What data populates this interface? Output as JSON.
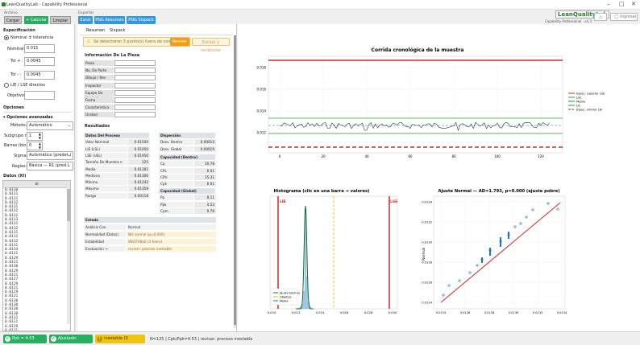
{
  "app": {
    "title": "LeanQualityLab - Capability Professional",
    "brand": "LeanQualityLab",
    "brand_sub": "Capability Professional · v4.3"
  },
  "toolbar": {
    "archivo_label": "Archivo",
    "cargar": "Cargar",
    "calcular": "+ Calcular",
    "limpiar": "Limpiar",
    "exportar_label": "Exportar",
    "excel": "Excel",
    "png_resumen": "PNG Resumen",
    "png_sixpack": "PNG Sixpack",
    "ingresar": "Ingresar"
  },
  "spec": {
    "section": "Especificación",
    "mode_nominal": "Nominal ± tolerancia",
    "nominal_label": "Nominal:",
    "nominal_value": "0.015",
    "tol_plus_label": "Tol + :",
    "tol_plus_value": "0.0045",
    "tol_minus_label": "Tol - :",
    "tol_minus_value": "0.0045",
    "mode_lie": "LIE / LSE directos",
    "objetivo_label": "Objetivo:",
    "objetivo_value": ""
  },
  "options": {
    "section": "Opciones",
    "advanced": "Opciones avanzadas",
    "metodo_label": "Método:",
    "metodo_value": "Automático",
    "subgrupo_label": "Subgrupo n:",
    "subgrupo_value": "1",
    "barras_label": "Barras (bins):",
    "barras_value": "0",
    "sigma_label": "Sigma:",
    "sigma_value": "Automático (predet.)",
    "reglas_label": "Reglas:",
    "reglas_value": "Básica — R1 (pred.)"
  },
  "data": {
    "section": "Datos (XI)",
    "column": "xi",
    "values": [
      "0.0130",
      "0.0131",
      "0.0131",
      "0.0132",
      "0.0131",
      "0.0132",
      "0.0131",
      "0.0133",
      "0.0131",
      "0.0132",
      "0.0131",
      "0.0131",
      "0.0132",
      "0.0131",
      "0.0134",
      "0.0131",
      "0.0129",
      "0.0131",
      "0.0130",
      "0.0129",
      "0.0131",
      "0.0127",
      "0.0129",
      "0.0131",
      "0.0129",
      "0.0131",
      "0.0130",
      "0.0130",
      "0.0130",
      "0.0130",
      "0.0131",
      "0.0131",
      "0.0129",
      "0.0131",
      "0.0130",
      "0.0131"
    ]
  },
  "middle": {
    "tab_resumen": "Resumen",
    "tab_sixpack": "Sixpack",
    "warning": "Se detectaron 3 punto(s) fuera de control.",
    "revisar": "Revisar",
    "excluir": "Excluir y recalcular",
    "info_title": "Información De La Pieza",
    "info_fields": [
      "Pieza",
      "No. De Parte",
      "Dibujo / Rev",
      "Inspector",
      "Equipo De Medición",
      "Fecha",
      "Característica",
      "Unidad"
    ],
    "results_title": "Resultados",
    "proc_title": "Datos Del Proceso",
    "proc_rows": [
      {
        "k": "Valor Nominal",
        "v": "0.01500"
      },
      {
        "k": "LIE (LSL)",
        "v": "0.01050"
      },
      {
        "k": "LSE (USL)",
        "v": "0.01950"
      },
      {
        "k": "Tamaño De Muestra n",
        "v": "125"
      },
      {
        "k": "Media",
        "v": "0.01301"
      },
      {
        "k": "Mediana",
        "v": "0.01300"
      },
      {
        "k": "Mínimo",
        "v": "0.01242"
      },
      {
        "k": "Máximo",
        "v": "0.01359"
      },
      {
        "k": "Rango",
        "v": "0.00118"
      }
    ],
    "disp_title": "Dispersión",
    "disp_rows": [
      {
        "k": "Desv. Dentro",
        "v": "0.00014"
      },
      {
        "k": "Desv. Global",
        "v": "0.00019"
      }
    ],
    "cap_title": "Capacidad (Dentro)",
    "cap_rows": [
      {
        "k": "Cp",
        "v": "10.78"
      },
      {
        "k": "CPL",
        "v": "6.01"
      },
      {
        "k": "CPU",
        "v": "15.31"
      },
      {
        "k": "Cpk",
        "v": "6.01"
      }
    ],
    "capg_title": "Capacidad (Global)",
    "capg_rows": [
      {
        "k": "Pp",
        "v": "8.11"
      },
      {
        "k": "Ppk",
        "v": "4.53"
      },
      {
        "k": "Cpm",
        "v": "0.76"
      }
    ],
    "estado_title": "Estado",
    "estado_rows": [
      {
        "k": "Análisis Con",
        "v": "Normal"
      },
      {
        "k": "Normalidad (Datos)",
        "v": "NO normal  (p=0.000)"
      },
      {
        "k": "Estabilidad",
        "v": "INESTABLE (3 fuera)"
      },
      {
        "k": "Evaluación →",
        "v": "revisar: proceso inestable"
      }
    ]
  },
  "run_chart": {
    "title": "Corrida cronológica de la muestra",
    "x_ticks": [
      "0",
      "20",
      "40",
      "60",
      "80",
      "100",
      "120"
    ],
    "y_ticks": [
      "0.012",
      "0.014",
      "0.016",
      "0.018"
    ],
    "legend": [
      "Espec. superior LSE",
      "LSC",
      "Media",
      "LIC",
      "Espec. inferior LIE"
    ],
    "colors": {
      "spec": "#d62728",
      "lsc": "#2ca02c",
      "media": "#1f77b4",
      "data": "#333333"
    }
  },
  "histogram": {
    "title": "Histograma  (clic en una barra → valores)",
    "x_ticks": [
      "0.010",
      "0.012",
      "0.014",
      "0.016",
      "0.018",
      "0.020"
    ],
    "lie_label": "LIE",
    "lse_label": "LSE",
    "legend": [
      "Ajuste Normal",
      "Objetivo",
      "Media"
    ]
  },
  "qq": {
    "title": "Ajuste Normal — AD=1.793, p=0.000 (ajuste pobre)",
    "ylabel": "Normal",
    "x_ticks": [
      "0.0124",
      "0.0126",
      "0.0128",
      "0.0130",
      "0.0132",
      "0.0134"
    ],
    "y_ticks": [
      "0.0124",
      "0.0126",
      "0.0128",
      "0.0130",
      "0.0132",
      "0.0134"
    ]
  },
  "status": {
    "ppk": "Ppk = 4.53 capaz",
    "normal": "Ajustado: Normal",
    "inestable": "Inestable (3 señales)",
    "summary": "N=125 | Cpk/Ppk=4.53 | revisar: proceso inestable",
    "colors": {
      "green": "#27ae60",
      "yellow": "#f1c40f"
    }
  }
}
